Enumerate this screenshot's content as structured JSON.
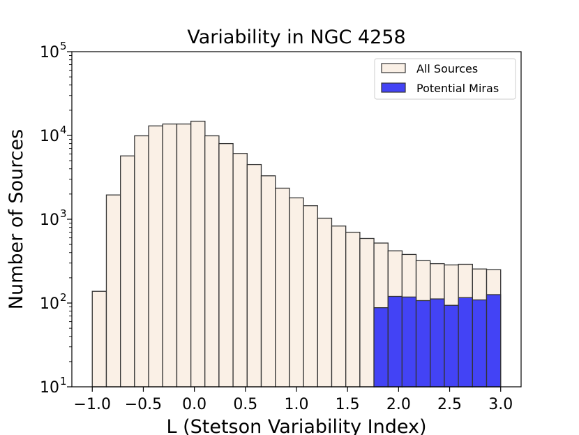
{
  "chart_data": {
    "type": "bar",
    "title": "Variability in NGC 4258",
    "xlabel": "L (Stetson Variability Index)",
    "ylabel": "Number of Sources",
    "xlim": [
      -1.2,
      3.2
    ],
    "ylim_log10": [
      1,
      5
    ],
    "yscale": "log",
    "bin_width": 0.1379,
    "x_ticks": [
      -1.0,
      -0.5,
      0.0,
      0.5,
      1.0,
      1.5,
      2.0,
      2.5,
      3.0
    ],
    "x_tick_labels": [
      "−1.0",
      "−0.5",
      "0.0",
      "0.5",
      "1.0",
      "1.5",
      "2.0",
      "2.5",
      "3.0"
    ],
    "y_ticks": [
      {
        "base": "10",
        "exp": "1"
      },
      {
        "base": "10",
        "exp": "2"
      },
      {
        "base": "10",
        "exp": "3"
      },
      {
        "base": "10",
        "exp": "4"
      },
      {
        "base": "10",
        "exp": "5"
      }
    ],
    "legend_position": "top-right",
    "series": [
      {
        "name": "All Sources",
        "color": "#faf0e6",
        "edge": "#333333",
        "bin_starts": [
          -1.0,
          -0.862,
          -0.724,
          -0.586,
          -0.448,
          -0.31,
          -0.172,
          -0.034,
          0.103,
          0.241,
          0.379,
          0.517,
          0.655,
          0.793,
          0.931,
          1.069,
          1.207,
          1.345,
          1.483,
          1.621,
          1.759,
          1.897,
          2.034,
          2.172,
          2.31,
          2.448,
          2.586,
          2.724,
          2.862
        ],
        "values": [
          138,
          1950,
          5700,
          9900,
          13000,
          13700,
          13700,
          14800,
          9900,
          8000,
          6100,
          4500,
          3300,
          2350,
          1800,
          1450,
          1030,
          830,
          700,
          590,
          520,
          420,
          380,
          320,
          295,
          285,
          290,
          255,
          250
        ]
      },
      {
        "name": "Potential Miras",
        "color": "#4343f5",
        "edge": "#333333",
        "bin_starts": [
          1.759,
          1.897,
          2.034,
          2.172,
          2.31,
          2.448,
          2.586,
          2.724,
          2.862
        ],
        "values": [
          88,
          120,
          118,
          107,
          112,
          94,
          116,
          109,
          126
        ]
      }
    ]
  }
}
